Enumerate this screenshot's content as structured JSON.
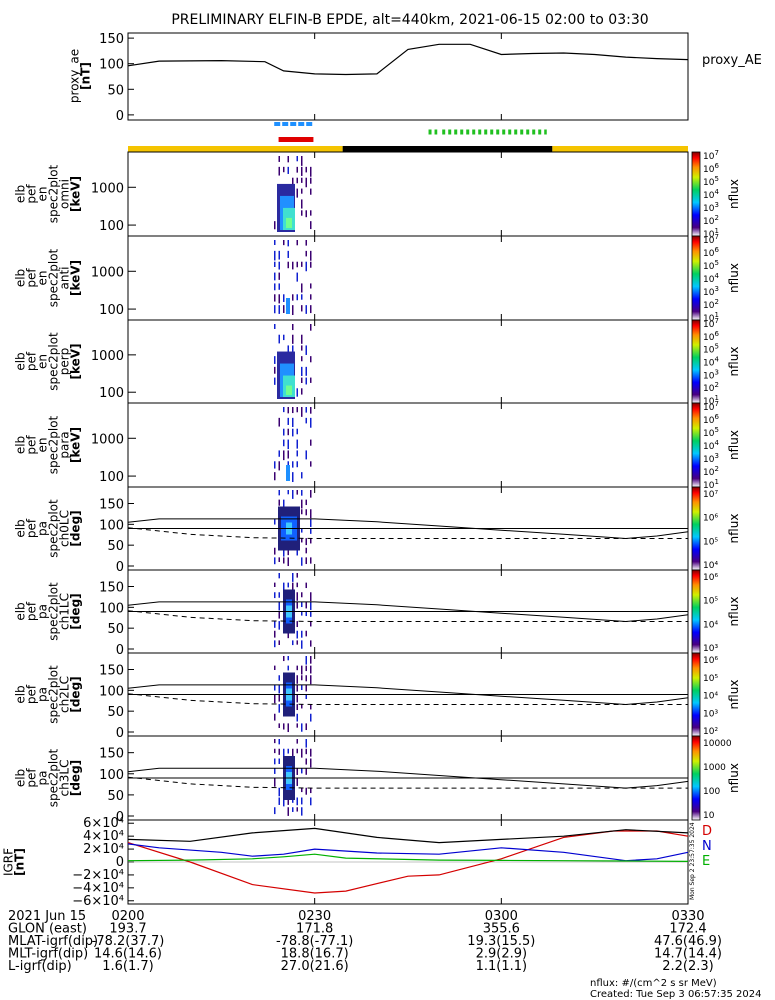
{
  "title": "PRELIMINARY ELFIN-B EPDE, alt=440km, 2021-06-15 02:00 to 03:30",
  "ae_panel": {
    "ylabel": [
      "proxy_ae",
      "[nT]"
    ],
    "yticks": [
      "150",
      "100",
      "50",
      "0"
    ],
    "legend": "proxy_AE",
    "ylim": [
      -10,
      160
    ],
    "x_minutes": [
      0,
      5,
      15,
      22,
      25,
      30,
      35,
      40,
      45,
      50,
      55,
      60,
      65,
      70,
      75,
      80,
      85,
      90
    ],
    "values": [
      96,
      105,
      106,
      104,
      86,
      80,
      79,
      80,
      128,
      138,
      138,
      118,
      120,
      121,
      118,
      113,
      110,
      108
    ]
  },
  "flags": {
    "blue_segments": [
      [
        23.5,
        29.8
      ]
    ],
    "red_segments": [
      [
        24.2,
        29.8
      ]
    ],
    "green_segments": [
      [
        48.3,
        49.7
      ],
      [
        50.5,
        67.3
      ]
    ],
    "orbit_bar": [
      {
        "from": 0,
        "to": 34.5,
        "color": "#f5c400"
      },
      {
        "from": 34.5,
        "to": 68.2,
        "color": "#000000"
      },
      {
        "from": 68.2,
        "to": 90,
        "color": "#f5c400"
      }
    ]
  },
  "spectra_panels": [
    {
      "ylabel": [
        "elb",
        "pef",
        "en",
        "spec2plot",
        "omni",
        "[keV]"
      ],
      "yticks": [
        "1000",
        "100"
      ],
      "cb_max_exp": 7,
      "cb_min_exp": 1,
      "cb_label": "nflux"
    },
    {
      "ylabel": [
        "elb",
        "pef",
        "en",
        "spec2plot",
        "anti",
        "[keV]"
      ],
      "yticks": [
        "1000",
        "100"
      ],
      "cb_max_exp": 7,
      "cb_min_exp": 1,
      "cb_label": "nflux"
    },
    {
      "ylabel": [
        "elb",
        "pef",
        "en",
        "spec2plot",
        "perp",
        "[keV]"
      ],
      "yticks": [
        "1000",
        "100"
      ],
      "cb_max_exp": 7,
      "cb_min_exp": 1,
      "cb_label": "nflux"
    },
    {
      "ylabel": [
        "elb",
        "pef",
        "en",
        "spec2plot",
        "para",
        "[keV]"
      ],
      "yticks": [
        "1000",
        "100"
      ],
      "cb_max_exp": 7,
      "cb_min_exp": 1,
      "cb_label": "nflux"
    }
  ],
  "pa_panels": [
    {
      "ylabel": [
        "elb",
        "pef",
        "pa",
        "spec2plot",
        "ch0LC",
        "[deg]"
      ],
      "yticks": [
        "150",
        "100",
        "50",
        "0"
      ],
      "cb_ticks": [
        "10⁷",
        "10⁶",
        "10⁵",
        "10⁴"
      ],
      "cb_label": "nflux"
    },
    {
      "ylabel": [
        "elb",
        "pef",
        "pa",
        "spec2plot",
        "ch1LC",
        "[deg]"
      ],
      "yticks": [
        "150",
        "100",
        "50",
        "0"
      ],
      "cb_ticks": [
        "10⁶",
        "10⁵",
        "10⁴",
        "10³"
      ],
      "cb_label": "nflux"
    },
    {
      "ylabel": [
        "elb",
        "pef",
        "pa",
        "spec2plot",
        "ch2LC",
        "[deg]"
      ],
      "yticks": [
        "150",
        "100",
        "50",
        "0"
      ],
      "cb_ticks": [
        "10⁶",
        "10⁵",
        "10⁴",
        "10³",
        "10²"
      ],
      "cb_label": "nflux"
    },
    {
      "ylabel": [
        "elb",
        "pef",
        "pa",
        "spec2plot",
        "ch3LC",
        "[deg]"
      ],
      "yticks": [
        "150",
        "100",
        "50",
        "0"
      ],
      "cb_ticks": [
        "10000",
        "1000",
        "100",
        "10"
      ],
      "cb_label": "nflux"
    }
  ],
  "pa_lines": {
    "x_minutes": [
      0,
      5,
      10,
      20,
      30,
      40,
      50,
      60,
      70,
      80,
      85,
      90
    ],
    "solid": [
      105,
      113,
      113,
      113,
      113,
      106,
      96,
      86,
      76,
      66,
      72,
      82
    ],
    "dashed": [
      92,
      84,
      76,
      68,
      66,
      66,
      66,
      66,
      66,
      66,
      66,
      66
    ],
    "flat": 90
  },
  "igrf_panel": {
    "ylabel": [
      "IGRF",
      "[nT]"
    ],
    "yticks": [
      "6×10⁴",
      "4×10⁴",
      "2×10⁴",
      "0",
      "−2×10⁴",
      "−4×10⁴",
      "−6×10⁴"
    ],
    "ylim": [
      -65000,
      65000
    ],
    "legend": [
      "D",
      "N",
      "E"
    ],
    "series": [
      {
        "name": "D",
        "color": "#d40000",
        "x": [
          0,
          10,
          20,
          30,
          35,
          45,
          50,
          60,
          70,
          78,
          85,
          90
        ],
        "values": [
          30000,
          0,
          -35000,
          -48000,
          -45000,
          -22000,
          -20000,
          5000,
          38000,
          48000,
          48000,
          40000
        ]
      },
      {
        "name": "N",
        "color": "#0000d0",
        "x": [
          0,
          5,
          15,
          20,
          25,
          30,
          40,
          50,
          60,
          70,
          80,
          85,
          90
        ],
        "values": [
          28000,
          22000,
          15000,
          9000,
          12000,
          20000,
          14000,
          12000,
          22000,
          15000,
          2000,
          5000,
          15000
        ]
      },
      {
        "name": "E",
        "color": "#00b000",
        "x": [
          0,
          10,
          20,
          25,
          30,
          35,
          50,
          60,
          70,
          80,
          90
        ],
        "values": [
          2000,
          3000,
          5000,
          8000,
          12000,
          6000,
          3000,
          2500,
          2000,
          1500,
          1000
        ]
      },
      {
        "name": "",
        "color": "#000000",
        "x": [
          0,
          10,
          20,
          30,
          40,
          50,
          60,
          70,
          80,
          90
        ],
        "values": [
          35000,
          32000,
          45000,
          52000,
          38000,
          30000,
          35000,
          40000,
          50000,
          45000
        ]
      }
    ]
  },
  "x_ticks": [
    "0200",
    "0230",
    "0300",
    "0330"
  ],
  "x_tick_minutes": [
    0,
    30,
    60,
    90
  ],
  "footer": {
    "rows": [
      {
        "label": "2021 Jun 15",
        "values": [
          "0200",
          "0230",
          "0300",
          "0330"
        ]
      },
      {
        "label": "GLON (east)",
        "values": [
          "193.7",
          "171.8",
          "355.6",
          "172.4"
        ]
      },
      {
        "label": "MLAT-igrf(dip)",
        "values": [
          "-78.2(37.7)",
          "-78.8(-77.1)",
          "19.3(15.5)",
          "47.6(46.9)"
        ]
      },
      {
        "label": "MLT-igrf(dip)",
        "values": [
          "14.6(14.6)",
          "18.8(16.7)",
          "2.9(2.9)",
          "14.7(14.4)"
        ]
      },
      {
        "label": "L-igrf(dip)",
        "values": [
          "1.6(1.7)",
          "27.0(21.6)",
          "1.1(1.1)",
          "2.2(2.3)"
        ]
      }
    ],
    "units_note": "nflux: #/(cm^2 s sr MeV)",
    "created": "Created: Tue Sep  3 06:57:35 2024",
    "side_stamp": "Mon Sep  2 23:57:35 2024"
  }
}
